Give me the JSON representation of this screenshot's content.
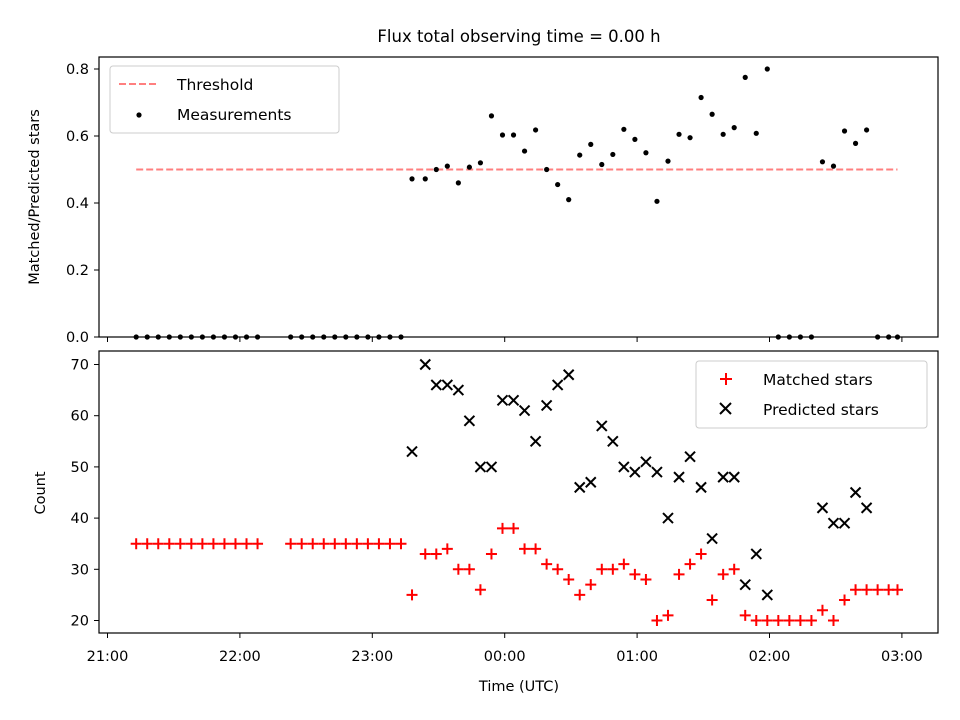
{
  "chart_data": [
    {
      "type": "scatter",
      "title": "Flux total observing time = 0.00 h",
      "xlabel": "",
      "ylabel": "Matched/Predicted stars",
      "xlim": [
        "21:00",
        "03:00"
      ],
      "ylim": [
        0,
        0.83
      ],
      "yticks": [
        "0.0",
        "0.2",
        "0.4",
        "0.6",
        "0.8"
      ],
      "ytick_values": [
        0,
        0.2,
        0.4,
        0.6,
        0.8
      ],
      "legend": "top-left",
      "threshold": {
        "name": "Threshold",
        "value": 0.5,
        "x_range": [
          "21:13",
          "02:58"
        ],
        "color": "#ff7f7f"
      },
      "series": [
        {
          "name": "Measurements",
          "color": "#000000",
          "points": [
            [
              "21:13",
              0
            ],
            [
              "21:18",
              0
            ],
            [
              "21:23",
              0
            ],
            [
              "21:28",
              0
            ],
            [
              "21:33",
              0
            ],
            [
              "21:38",
              0
            ],
            [
              "21:43",
              0
            ],
            [
              "21:48",
              0
            ],
            [
              "21:53",
              0
            ],
            [
              "21:58",
              0
            ],
            [
              "22:03",
              0
            ],
            [
              "22:08",
              0
            ],
            [
              "22:23",
              0
            ],
            [
              "22:28",
              0
            ],
            [
              "22:33",
              0
            ],
            [
              "22:38",
              0
            ],
            [
              "22:43",
              0
            ],
            [
              "22:48",
              0
            ],
            [
              "22:53",
              0
            ],
            [
              "22:58",
              0
            ],
            [
              "23:03",
              0
            ],
            [
              "23:08",
              0
            ],
            [
              "23:13",
              0
            ],
            [
              "23:18",
              0.472
            ],
            [
              "23:24",
              0.472
            ],
            [
              "23:29",
              0.5
            ],
            [
              "23:34",
              0.51
            ],
            [
              "23:39",
              0.46
            ],
            [
              "23:44",
              0.507
            ],
            [
              "23:49",
              0.52
            ],
            [
              "23:54",
              0.66
            ],
            [
              "23:59",
              0.603
            ],
            [
              "00:04",
              0.603
            ],
            [
              "00:09",
              0.555
            ],
            [
              "00:14",
              0.618
            ],
            [
              "00:19",
              0.5
            ],
            [
              "00:24",
              0.455
            ],
            [
              "00:29",
              0.41
            ],
            [
              "00:34",
              0.543
            ],
            [
              "00:39",
              0.575
            ],
            [
              "00:44",
              0.515
            ],
            [
              "00:49",
              0.545
            ],
            [
              "00:54",
              0.62
            ],
            [
              "00:59",
              0.59
            ],
            [
              "01:04",
              0.55
            ],
            [
              "01:09",
              0.405
            ],
            [
              "01:14",
              0.525
            ],
            [
              "01:19",
              0.605
            ],
            [
              "01:24",
              0.595
            ],
            [
              "01:29",
              0.715
            ],
            [
              "01:34",
              0.665
            ],
            [
              "01:39",
              0.605
            ],
            [
              "01:44",
              0.625
            ],
            [
              "01:49",
              0.775
            ],
            [
              "01:54",
              0.608
            ],
            [
              "01:59",
              0.8
            ],
            [
              "02:04",
              0
            ],
            [
              "02:09",
              0
            ],
            [
              "02:14",
              0
            ],
            [
              "02:19",
              0
            ],
            [
              "02:24",
              0.523
            ],
            [
              "02:29",
              0.51
            ],
            [
              "02:34",
              0.615
            ],
            [
              "02:39",
              0.578
            ],
            [
              "02:44",
              0.618
            ],
            [
              "02:49",
              0
            ],
            [
              "02:54",
              0
            ],
            [
              "02:58",
              0
            ]
          ]
        }
      ]
    },
    {
      "type": "scatter",
      "title": "",
      "xlabel": "Time (UTC)",
      "ylabel": "Count",
      "xlim": [
        "21:00",
        "03:00"
      ],
      "ylim": [
        17.5,
        72.5
      ],
      "xticks": [
        "21:00",
        "22:00",
        "23:00",
        "00:00",
        "01:00",
        "02:00",
        "03:00"
      ],
      "yticks": [
        "20",
        "30",
        "40",
        "50",
        "60",
        "70"
      ],
      "ytick_values": [
        20,
        30,
        40,
        50,
        60,
        70
      ],
      "legend": "top-right",
      "series": [
        {
          "name": "Matched stars",
          "marker": "plus",
          "color": "#ff0000",
          "points": [
            [
              "21:13",
              35
            ],
            [
              "21:18",
              35
            ],
            [
              "21:23",
              35
            ],
            [
              "21:28",
              35
            ],
            [
              "21:33",
              35
            ],
            [
              "21:38",
              35
            ],
            [
              "21:43",
              35
            ],
            [
              "21:48",
              35
            ],
            [
              "21:53",
              35
            ],
            [
              "21:58",
              35
            ],
            [
              "22:03",
              35
            ],
            [
              "22:08",
              35
            ],
            [
              "22:23",
              35
            ],
            [
              "22:28",
              35
            ],
            [
              "22:33",
              35
            ],
            [
              "22:38",
              35
            ],
            [
              "22:43",
              35
            ],
            [
              "22:48",
              35
            ],
            [
              "22:53",
              35
            ],
            [
              "22:58",
              35
            ],
            [
              "23:03",
              35
            ],
            [
              "23:08",
              35
            ],
            [
              "23:13",
              35
            ],
            [
              "23:18",
              25
            ],
            [
              "23:24",
              33
            ],
            [
              "23:29",
              33
            ],
            [
              "23:34",
              34
            ],
            [
              "23:39",
              30
            ],
            [
              "23:44",
              30
            ],
            [
              "23:49",
              26
            ],
            [
              "23:54",
              33
            ],
            [
              "23:59",
              38
            ],
            [
              "00:04",
              38
            ],
            [
              "00:09",
              34
            ],
            [
              "00:14",
              34
            ],
            [
              "00:19",
              31
            ],
            [
              "00:24",
              30
            ],
            [
              "00:29",
              28
            ],
            [
              "00:34",
              25
            ],
            [
              "00:39",
              27
            ],
            [
              "00:44",
              30
            ],
            [
              "00:49",
              30
            ],
            [
              "00:54",
              31
            ],
            [
              "00:59",
              29
            ],
            [
              "01:04",
              28
            ],
            [
              "01:09",
              20
            ],
            [
              "01:14",
              21
            ],
            [
              "01:19",
              29
            ],
            [
              "01:24",
              31
            ],
            [
              "01:29",
              33
            ],
            [
              "01:34",
              24
            ],
            [
              "01:39",
              29
            ],
            [
              "01:44",
              30
            ],
            [
              "01:49",
              21
            ],
            [
              "01:54",
              20
            ],
            [
              "01:59",
              20
            ],
            [
              "02:04",
              20
            ],
            [
              "02:09",
              20
            ],
            [
              "02:14",
              20
            ],
            [
              "02:19",
              20
            ],
            [
              "02:24",
              22
            ],
            [
              "02:29",
              20
            ],
            [
              "02:34",
              24
            ],
            [
              "02:39",
              26
            ],
            [
              "02:44",
              26
            ],
            [
              "02:49",
              26
            ],
            [
              "02:54",
              26
            ],
            [
              "02:58",
              26
            ]
          ]
        },
        {
          "name": "Predicted stars",
          "marker": "x",
          "color": "#000000",
          "points": [
            [
              "23:18",
              53
            ],
            [
              "23:24",
              70
            ],
            [
              "23:29",
              66
            ],
            [
              "23:34",
              66
            ],
            [
              "23:39",
              65
            ],
            [
              "23:44",
              59
            ],
            [
              "23:49",
              50
            ],
            [
              "23:54",
              50
            ],
            [
              "23:59",
              63
            ],
            [
              "00:04",
              63
            ],
            [
              "00:09",
              61
            ],
            [
              "00:14",
              55
            ],
            [
              "00:19",
              62
            ],
            [
              "00:24",
              66
            ],
            [
              "00:29",
              68
            ],
            [
              "00:34",
              46
            ],
            [
              "00:39",
              47
            ],
            [
              "00:44",
              58
            ],
            [
              "00:49",
              55
            ],
            [
              "00:54",
              50
            ],
            [
              "00:59",
              49
            ],
            [
              "01:04",
              51
            ],
            [
              "01:09",
              49
            ],
            [
              "01:14",
              40
            ],
            [
              "01:19",
              48
            ],
            [
              "01:24",
              52
            ],
            [
              "01:29",
              46
            ],
            [
              "01:34",
              36
            ],
            [
              "01:39",
              48
            ],
            [
              "01:44",
              48
            ],
            [
              "01:49",
              27
            ],
            [
              "01:54",
              33
            ],
            [
              "01:59",
              25
            ],
            [
              "02:24",
              42
            ],
            [
              "02:29",
              39
            ],
            [
              "02:34",
              39
            ],
            [
              "02:39",
              45
            ],
            [
              "02:44",
              42
            ]
          ]
        }
      ]
    }
  ]
}
